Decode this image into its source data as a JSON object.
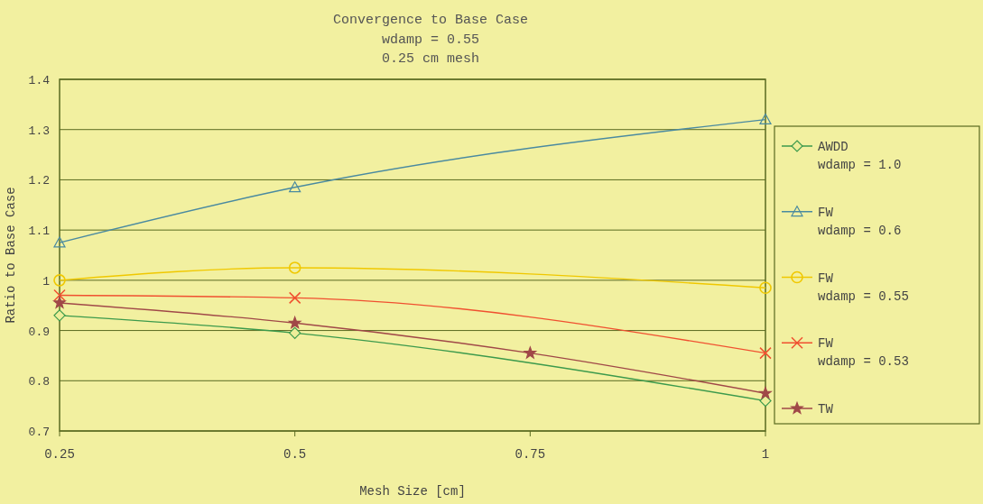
{
  "chart_data": {
    "type": "line",
    "title": "Convergence to Base Case",
    "subtitle": "wdamp = 0.55\n0.25 cm mesh",
    "xlabel": "Mesh Size [cm]",
    "ylabel": "Ratio to Base Case",
    "xlim": [
      0.25,
      1
    ],
    "xticks": [
      0.25,
      0.5,
      0.75,
      1
    ],
    "ylim": [
      0.7,
      1.4
    ],
    "yticks": [
      0.7,
      0.8,
      0.9,
      1,
      1.1,
      1.2,
      1.3,
      1.4
    ],
    "grid": "y",
    "legend": "right",
    "series": [
      {
        "name": "AWDD wdamp = 1.0",
        "color": "#3c9a4c",
        "marker": "diamond",
        "x": [
          0.25,
          0.5,
          1
        ],
        "values": [
          0.93,
          0.895,
          0.76
        ]
      },
      {
        "name": "FW wdamp = 0.6",
        "color": "#4a8aa0",
        "marker": "triangle",
        "x": [
          0.25,
          0.5,
          1
        ],
        "values": [
          1.075,
          1.185,
          1.32
        ]
      },
      {
        "name": "FW wdamp = 0.55",
        "color": "#f0c800",
        "marker": "circle",
        "x": [
          0.25,
          0.5,
          1
        ],
        "values": [
          1.0,
          1.025,
          0.985
        ]
      },
      {
        "name": "FW wdamp = 0.53",
        "color": "#f05030",
        "marker": "cross",
        "x": [
          0.25,
          0.5,
          1
        ],
        "values": [
          0.97,
          0.965,
          0.855
        ]
      },
      {
        "name": "TW",
        "color": "#a04848",
        "marker": "star",
        "x": [
          0.25,
          0.5,
          0.75,
          1
        ],
        "values": [
          0.955,
          0.915,
          0.855,
          0.775
        ]
      }
    ]
  }
}
